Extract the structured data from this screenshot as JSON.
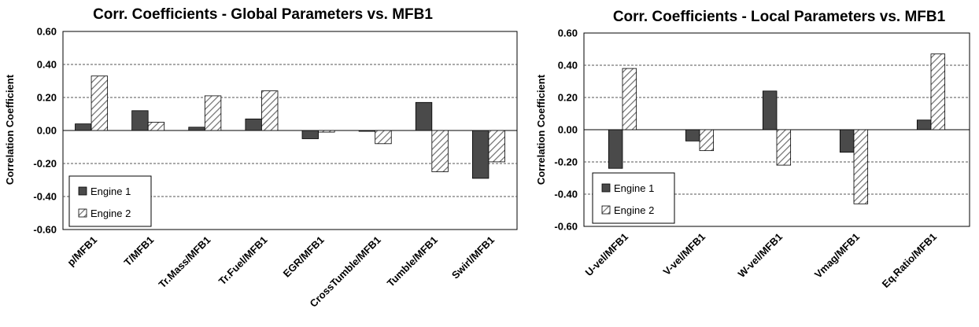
{
  "colors": {
    "engine1": "#4a4a4a",
    "engine2_stripe": "#7a7a7a",
    "grid": "#000000"
  },
  "chart_data": [
    {
      "type": "bar",
      "title": "Corr. Coefficients - Global Parameters vs. MFB1",
      "ylabel": "Correlation Coefficient",
      "xlabel": "",
      "ylim": [
        -0.6,
        0.6
      ],
      "yticks": [
        "0.60",
        "0.40",
        "0.20",
        "0.00",
        "-0.20",
        "-0.40",
        "-0.60"
      ],
      "categories": [
        "p/MFB1",
        "T/MFB1",
        "Tr.Mass/MFB1",
        "Tr.Fuel/MFB1",
        "EGR/MFB1",
        "CrossTumble/MFB1",
        "Tumble/MFB1",
        "Swirl/MFB1"
      ],
      "series": [
        {
          "name": "Engine 1",
          "values": [
            0.04,
            0.12,
            0.02,
            0.07,
            -0.05,
            -0.005,
            0.17,
            -0.29
          ]
        },
        {
          "name": "Engine 2",
          "values": [
            0.33,
            0.05,
            0.21,
            0.24,
            -0.01,
            -0.08,
            -0.25,
            -0.19
          ]
        }
      ],
      "legend": "bottom-left",
      "grid": "dashed horizontal"
    },
    {
      "type": "bar",
      "title": "Corr. Coefficients - Local Parameters vs. MFB1",
      "ylabel": "Correlation Coefficient",
      "xlabel": "",
      "ylim": [
        -0.6,
        0.6
      ],
      "yticks": [
        "0.60",
        "0.40",
        "0.20",
        "0.00",
        "-0.20",
        "-0.40",
        "-0.60"
      ],
      "categories": [
        "U-vel/MFB1",
        "V-vel/MFB1",
        "W-vel/MFB1",
        "Vmag/MFB1",
        "Eq.Ratio/MFB1"
      ],
      "series": [
        {
          "name": "Engine 1",
          "values": [
            -0.24,
            -0.07,
            0.24,
            -0.14,
            0.06
          ]
        },
        {
          "name": "Engine 2",
          "values": [
            0.38,
            -0.13,
            -0.22,
            -0.46,
            0.47
          ]
        }
      ],
      "legend": "bottom-left",
      "grid": "dashed horizontal"
    }
  ]
}
